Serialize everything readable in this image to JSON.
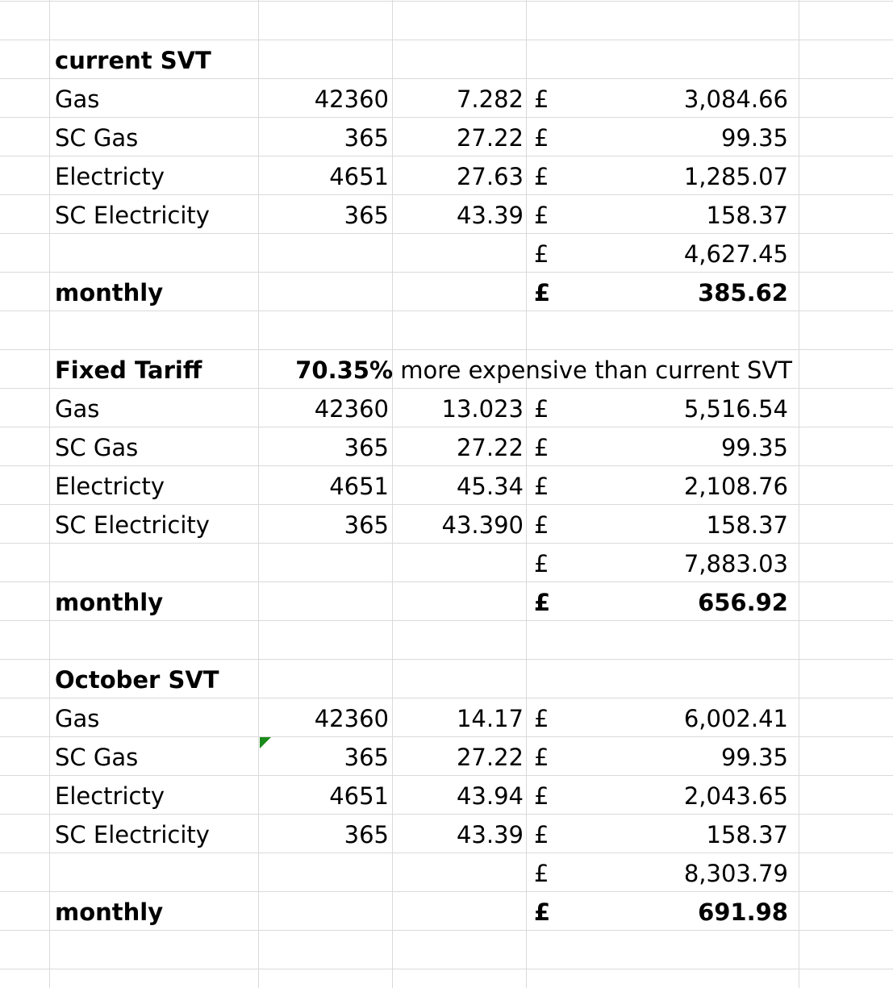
{
  "sections": [
    {
      "title": "current SVT",
      "rows": [
        {
          "label": "Gas",
          "qty": "42360",
          "rate": "7.282",
          "currency": "£",
          "amount": "3,084.66"
        },
        {
          "label": "SC Gas",
          "qty": "365",
          "rate": "27.22",
          "currency": "£",
          "amount": "99.35"
        },
        {
          "label": "Electricty",
          "qty": "4651",
          "rate": "27.63",
          "currency": "£",
          "amount": "1,285.07"
        },
        {
          "label": "SC Electricity",
          "qty": "365",
          "rate": "43.39",
          "currency": "£",
          "amount": "158.37"
        }
      ],
      "total": {
        "currency": "£",
        "amount": "4,627.45"
      },
      "monthly": {
        "label": "monthly",
        "currency": "£",
        "amount": "385.62"
      }
    },
    {
      "title": "Fixed Tariff",
      "note": {
        "percent": "70.35%",
        "text": " more expensive than current SVT"
      },
      "rows": [
        {
          "label": "Gas",
          "qty": "42360",
          "rate": "13.023",
          "currency": "£",
          "amount": "5,516.54"
        },
        {
          "label": "SC Gas",
          "qty": "365",
          "rate": "27.22",
          "currency": "£",
          "amount": "99.35"
        },
        {
          "label": "Electricty",
          "qty": "4651",
          "rate": "45.34",
          "currency": "£",
          "amount": "2,108.76"
        },
        {
          "label": "SC Electricity",
          "qty": "365",
          "rate": "43.390",
          "currency": "£",
          "amount": "158.37"
        }
      ],
      "total": {
        "currency": "£",
        "amount": "7,883.03"
      },
      "monthly": {
        "label": "monthly",
        "currency": "£",
        "amount": "656.92"
      }
    },
    {
      "title": "October SVT",
      "rows": [
        {
          "label": "Gas",
          "qty": "42360",
          "rate": "14.17",
          "currency": "£",
          "amount": "6,002.41"
        },
        {
          "label": "SC Gas",
          "qty": "365",
          "rate": "27.22",
          "currency": "£",
          "amount": "99.35"
        },
        {
          "label": "Electricty",
          "qty": "4651",
          "rate": "43.94",
          "currency": "£",
          "amount": "2,043.65"
        },
        {
          "label": "SC Electricity",
          "qty": "365",
          "rate": "43.39",
          "currency": "£",
          "amount": "158.37"
        }
      ],
      "total": {
        "currency": "£",
        "amount": "8,303.79"
      },
      "monthly": {
        "label": "monthly",
        "currency": "£",
        "amount": "691.98"
      }
    }
  ],
  "colors": {
    "gridline": "#dadada",
    "comment_indicator": "#1a8a1a"
  }
}
